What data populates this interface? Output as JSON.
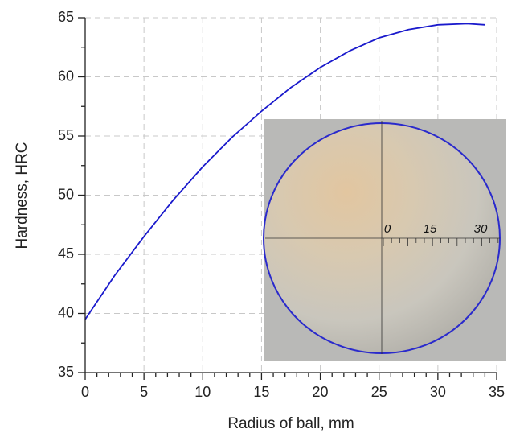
{
  "chart_data": {
    "type": "line",
    "x_label": "Radius of ball, mm",
    "y_label": "Hardness, HRC",
    "x": [
      0,
      2.5,
      5,
      7.5,
      10,
      12.5,
      15,
      17.5,
      20,
      22.5,
      25,
      27.5,
      30,
      32.5,
      34
    ],
    "series": [
      {
        "color": "#1a1acc",
        "values": [
          39.5,
          43.2,
          46.5,
          49.6,
          52.4,
          54.9,
          57.1,
          59.1,
          60.8,
          62.2,
          63.3,
          64.0,
          64.4,
          64.5,
          64.4
        ]
      }
    ],
    "xlim": [
      0,
      35
    ],
    "xticks": [
      0,
      5,
      10,
      15,
      20,
      25,
      30,
      35
    ],
    "ylim": [
      35,
      65
    ],
    "yticks": [
      35,
      40,
      45,
      50,
      55,
      60,
      65
    ],
    "grid": true,
    "annotations": [
      "0",
      "15",
      "30"
    ]
  }
}
